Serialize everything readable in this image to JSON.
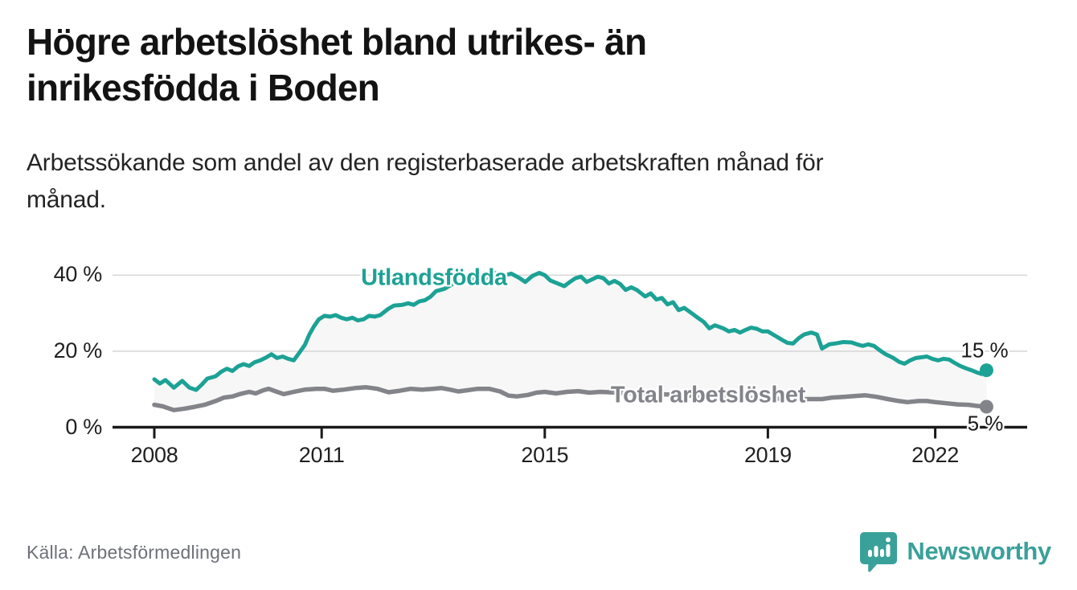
{
  "header": {
    "title_lines": [
      "Högre arbetslöshet bland utrikes- än",
      "inrikesfödda i Boden"
    ],
    "subtitle_lines": [
      "Arbetssökande som andel av den registerbaserade arbetskraften månad för",
      "månad."
    ]
  },
  "footer": {
    "source": "Källa: Arbetsförmedlingen",
    "brand": "Newsworthy"
  },
  "colors": {
    "series_teal": "#1ca295",
    "series_gray": "#83848a",
    "fill_between": "#f7f7f7",
    "grid": "#d8d8d8",
    "axis": "#1a1a1a",
    "brand_teal": "#3aa09a"
  },
  "chart_data": {
    "type": "line",
    "title": "Högre arbetslöshet bland utrikes- än inrikesfödda i Boden",
    "subtitle": "Arbetssökande som andel av den registerbaserade arbetskraften månad för månad.",
    "xlabel": "",
    "ylabel": "",
    "grid": "horizontal",
    "legend_position": "inline-labels",
    "xlim": [
      2007.25,
      2023.6
    ],
    "ylim": [
      0,
      42
    ],
    "x_ticks": [
      2008,
      2011,
      2015,
      2019,
      2022
    ],
    "x_tick_labels": [
      "2008",
      "2011",
      "2015",
      "2019",
      "2022"
    ],
    "y_ticks": [
      0,
      20,
      40
    ],
    "y_tick_labels": [
      "0 %",
      "20 %",
      "40 %"
    ],
    "fill_between_series": true,
    "series": [
      {
        "name": "Utlandsfödda",
        "color": "#1ca295",
        "end_value": 15,
        "end_label": "15 %",
        "points": [
          [
            2008.0,
            12.6
          ],
          [
            2008.1,
            11.5
          ],
          [
            2008.2,
            12.4
          ],
          [
            2008.35,
            10.4
          ],
          [
            2008.5,
            12.2
          ],
          [
            2008.63,
            10.4
          ],
          [
            2008.75,
            9.8
          ],
          [
            2008.85,
            11.2
          ],
          [
            2008.95,
            12.8
          ],
          [
            2009.1,
            13.4
          ],
          [
            2009.2,
            14.6
          ],
          [
            2009.3,
            15.4
          ],
          [
            2009.4,
            14.8
          ],
          [
            2009.5,
            16.0
          ],
          [
            2009.6,
            16.6
          ],
          [
            2009.7,
            16.1
          ],
          [
            2009.8,
            17.1
          ],
          [
            2009.9,
            17.6
          ],
          [
            2010.0,
            18.3
          ],
          [
            2010.1,
            19.2
          ],
          [
            2010.2,
            18.2
          ],
          [
            2010.3,
            18.6
          ],
          [
            2010.4,
            18.0
          ],
          [
            2010.5,
            17.6
          ],
          [
            2010.6,
            19.6
          ],
          [
            2010.7,
            21.7
          ],
          [
            2010.78,
            24.4
          ],
          [
            2010.86,
            26.5
          ],
          [
            2010.95,
            28.4
          ],
          [
            2011.05,
            29.3
          ],
          [
            2011.15,
            29.1
          ],
          [
            2011.25,
            29.5
          ],
          [
            2011.35,
            28.8
          ],
          [
            2011.45,
            28.4
          ],
          [
            2011.55,
            28.8
          ],
          [
            2011.65,
            28.1
          ],
          [
            2011.75,
            28.4
          ],
          [
            2011.85,
            29.3
          ],
          [
            2011.95,
            29.1
          ],
          [
            2012.05,
            29.5
          ],
          [
            2012.2,
            31.2
          ],
          [
            2012.3,
            32.0
          ],
          [
            2012.45,
            32.2
          ],
          [
            2012.55,
            32.6
          ],
          [
            2012.65,
            32.2
          ],
          [
            2012.75,
            33.1
          ],
          [
            2012.85,
            33.4
          ],
          [
            2012.95,
            34.3
          ],
          [
            2013.05,
            35.8
          ],
          [
            2013.2,
            36.4
          ],
          [
            2013.35,
            37.7
          ],
          [
            2013.5,
            38.2
          ],
          [
            2013.6,
            39.2
          ],
          [
            2013.7,
            38.6
          ],
          [
            2013.85,
            40.2
          ],
          [
            2013.95,
            39.3
          ],
          [
            2014.1,
            40.6
          ],
          [
            2014.25,
            39.8
          ],
          [
            2014.4,
            40.4
          ],
          [
            2014.55,
            39.2
          ],
          [
            2014.65,
            38.2
          ],
          [
            2014.78,
            39.8
          ],
          [
            2014.9,
            40.6
          ],
          [
            2015.0,
            40.0
          ],
          [
            2015.1,
            38.6
          ],
          [
            2015.25,
            37.7
          ],
          [
            2015.35,
            37.1
          ],
          [
            2015.45,
            38.2
          ],
          [
            2015.55,
            39.2
          ],
          [
            2015.65,
            39.6
          ],
          [
            2015.75,
            38.2
          ],
          [
            2015.85,
            38.9
          ],
          [
            2015.95,
            39.6
          ],
          [
            2016.05,
            39.2
          ],
          [
            2016.15,
            37.8
          ],
          [
            2016.25,
            38.5
          ],
          [
            2016.35,
            37.7
          ],
          [
            2016.45,
            36.1
          ],
          [
            2016.55,
            36.8
          ],
          [
            2016.65,
            36.1
          ],
          [
            2016.8,
            34.4
          ],
          [
            2016.9,
            35.2
          ],
          [
            2017.0,
            33.6
          ],
          [
            2017.1,
            34.0
          ],
          [
            2017.2,
            32.3
          ],
          [
            2017.3,
            32.9
          ],
          [
            2017.4,
            30.8
          ],
          [
            2017.5,
            31.4
          ],
          [
            2017.65,
            29.8
          ],
          [
            2017.75,
            28.7
          ],
          [
            2017.85,
            27.7
          ],
          [
            2017.95,
            26.0
          ],
          [
            2018.05,
            26.8
          ],
          [
            2018.2,
            26.0
          ],
          [
            2018.3,
            25.2
          ],
          [
            2018.4,
            25.6
          ],
          [
            2018.5,
            24.9
          ],
          [
            2018.6,
            25.6
          ],
          [
            2018.7,
            26.2
          ],
          [
            2018.8,
            25.9
          ],
          [
            2018.9,
            25.2
          ],
          [
            2019.0,
            25.2
          ],
          [
            2019.15,
            23.9
          ],
          [
            2019.25,
            23.0
          ],
          [
            2019.35,
            22.2
          ],
          [
            2019.45,
            22.0
          ],
          [
            2019.55,
            23.4
          ],
          [
            2019.65,
            24.4
          ],
          [
            2019.78,
            24.9
          ],
          [
            2019.88,
            24.4
          ],
          [
            2019.97,
            20.7
          ],
          [
            2020.1,
            21.8
          ],
          [
            2020.2,
            22.0
          ],
          [
            2020.35,
            22.4
          ],
          [
            2020.5,
            22.3
          ],
          [
            2020.6,
            21.8
          ],
          [
            2020.7,
            21.4
          ],
          [
            2020.8,
            21.8
          ],
          [
            2020.9,
            21.4
          ],
          [
            2021.0,
            20.3
          ],
          [
            2021.1,
            19.3
          ],
          [
            2021.25,
            18.2
          ],
          [
            2021.35,
            17.2
          ],
          [
            2021.45,
            16.7
          ],
          [
            2021.55,
            17.6
          ],
          [
            2021.65,
            18.2
          ],
          [
            2021.75,
            18.4
          ],
          [
            2021.85,
            18.6
          ],
          [
            2021.95,
            18.0
          ],
          [
            2022.05,
            17.6
          ],
          [
            2022.15,
            18.0
          ],
          [
            2022.25,
            17.8
          ],
          [
            2022.35,
            16.9
          ],
          [
            2022.45,
            16.1
          ],
          [
            2022.55,
            15.5
          ],
          [
            2022.65,
            15.0
          ],
          [
            2022.75,
            14.4
          ],
          [
            2022.83,
            14.0
          ],
          [
            2022.92,
            15.0
          ]
        ]
      },
      {
        "name": "Total arbetslöshet",
        "color": "#83848a",
        "end_value": 5,
        "end_label": "5 %",
        "points": [
          [
            2008.0,
            5.9
          ],
          [
            2008.15,
            5.5
          ],
          [
            2008.35,
            4.5
          ],
          [
            2008.55,
            4.9
          ],
          [
            2008.7,
            5.3
          ],
          [
            2008.9,
            5.9
          ],
          [
            2009.1,
            6.9
          ],
          [
            2009.25,
            7.8
          ],
          [
            2009.4,
            8.1
          ],
          [
            2009.55,
            8.8
          ],
          [
            2009.7,
            9.3
          ],
          [
            2009.82,
            8.9
          ],
          [
            2009.95,
            9.7
          ],
          [
            2010.05,
            10.1
          ],
          [
            2010.18,
            9.4
          ],
          [
            2010.32,
            8.7
          ],
          [
            2010.5,
            9.3
          ],
          [
            2010.7,
            9.9
          ],
          [
            2010.9,
            10.1
          ],
          [
            2011.05,
            10.1
          ],
          [
            2011.2,
            9.6
          ],
          [
            2011.4,
            9.9
          ],
          [
            2011.6,
            10.3
          ],
          [
            2011.8,
            10.5
          ],
          [
            2012.0,
            10.1
          ],
          [
            2012.2,
            9.2
          ],
          [
            2012.4,
            9.6
          ],
          [
            2012.6,
            10.1
          ],
          [
            2012.8,
            9.9
          ],
          [
            2013.0,
            10.1
          ],
          [
            2013.15,
            10.3
          ],
          [
            2013.3,
            9.9
          ],
          [
            2013.45,
            9.4
          ],
          [
            2013.6,
            9.7
          ],
          [
            2013.8,
            10.1
          ],
          [
            2014.0,
            10.1
          ],
          [
            2014.2,
            9.4
          ],
          [
            2014.35,
            8.3
          ],
          [
            2014.5,
            8.1
          ],
          [
            2014.7,
            8.5
          ],
          [
            2014.85,
            9.1
          ],
          [
            2015.0,
            9.3
          ],
          [
            2015.2,
            8.9
          ],
          [
            2015.4,
            9.3
          ],
          [
            2015.6,
            9.5
          ],
          [
            2015.8,
            9.1
          ],
          [
            2016.0,
            9.3
          ],
          [
            2016.3,
            9.1
          ],
          [
            2016.6,
            8.9
          ],
          [
            2016.9,
            8.7
          ],
          [
            2017.2,
            8.6
          ],
          [
            2017.5,
            8.4
          ],
          [
            2017.8,
            8.2
          ],
          [
            2018.1,
            8.0
          ],
          [
            2018.4,
            7.9
          ],
          [
            2018.7,
            7.7
          ],
          [
            2019.0,
            7.6
          ],
          [
            2019.3,
            7.5
          ],
          [
            2019.6,
            7.4
          ],
          [
            2019.97,
            7.4
          ],
          [
            2020.15,
            7.8
          ],
          [
            2020.36,
            8.0
          ],
          [
            2020.55,
            8.2
          ],
          [
            2020.75,
            8.4
          ],
          [
            2020.95,
            8.0
          ],
          [
            2021.15,
            7.4
          ],
          [
            2021.35,
            6.9
          ],
          [
            2021.5,
            6.6
          ],
          [
            2021.7,
            6.9
          ],
          [
            2021.85,
            6.9
          ],
          [
            2022.0,
            6.6
          ],
          [
            2022.2,
            6.3
          ],
          [
            2022.4,
            6.0
          ],
          [
            2022.6,
            5.9
          ],
          [
            2022.75,
            5.6
          ],
          [
            2022.92,
            5.4
          ]
        ]
      }
    ]
  }
}
